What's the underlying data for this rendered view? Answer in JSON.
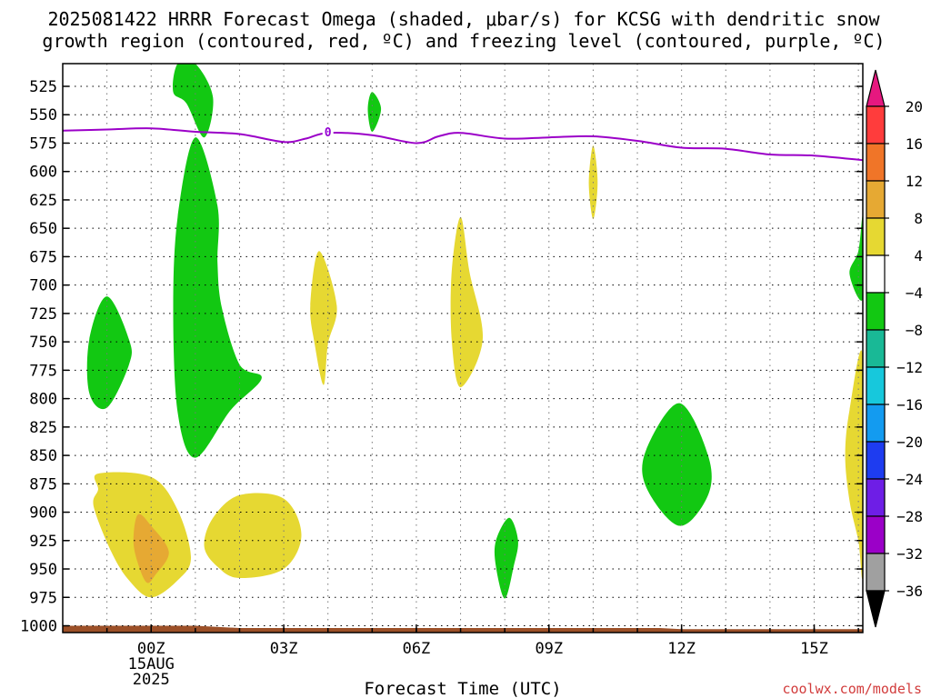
{
  "title_line1": "2025081422 HRRR Forecast Omega (shaded, μbar/s) for KCSG with dendritic snow",
  "title_line2": "growth region (contoured, red, ºC) and freezing level (contoured, purple, ºC)",
  "credit": "coolwx.com/models",
  "chart_data": {
    "type": "contour",
    "title": "2025081422 HRRR Forecast Omega (shaded, μbar/s) for KCSG with dendritic snow growth region (contoured, red, ºC) and freezing level (contoured, purple, ºC)",
    "xlabel": "Forecast Time (UTC)",
    "ylabel": "",
    "x_units": "hours after 2025-08-15 00Z",
    "xlim": [
      -2.0,
      16.1
    ],
    "ylim": [
      1006,
      505
    ],
    "grid": true,
    "x_ticks": [
      {
        "x": 0,
        "lines": [
          "00Z",
          "15AUG",
          "2025"
        ]
      },
      {
        "x": 3,
        "lines": [
          "03Z"
        ]
      },
      {
        "x": 6,
        "lines": [
          "06Z"
        ]
      },
      {
        "x": 9,
        "lines": [
          "09Z"
        ]
      },
      {
        "x": 12,
        "lines": [
          "12Z"
        ]
      },
      {
        "x": 15,
        "lines": [
          "15Z"
        ]
      }
    ],
    "y_ticks": [
      525,
      550,
      575,
      600,
      625,
      650,
      675,
      700,
      725,
      750,
      775,
      800,
      825,
      850,
      875,
      900,
      925,
      950,
      975,
      1000
    ],
    "freezing_level": {
      "label": "0",
      "color": "#9b00c8",
      "points": [
        [
          -2.0,
          564
        ],
        [
          -1.0,
          563
        ],
        [
          0.0,
          562
        ],
        [
          1.0,
          565
        ],
        [
          2.0,
          567
        ],
        [
          3.0,
          574
        ],
        [
          3.5,
          571
        ],
        [
          4.0,
          566
        ],
        [
          5.0,
          568
        ],
        [
          6.0,
          575
        ],
        [
          6.5,
          569
        ],
        [
          7.0,
          566
        ],
        [
          8.0,
          571
        ],
        [
          9.0,
          570
        ],
        [
          10.0,
          569
        ],
        [
          11.0,
          573
        ],
        [
          12.0,
          579
        ],
        [
          13.0,
          580
        ],
        [
          14.0,
          585
        ],
        [
          15.0,
          586
        ],
        [
          16.1,
          590
        ]
      ]
    },
    "omega_regions": [
      {
        "category": "-8 to -4",
        "color": "#12c812",
        "points": [
          [
            1.0,
            505
          ],
          [
            1.4,
            535
          ],
          [
            1.2,
            570
          ],
          [
            0.8,
            540
          ],
          [
            0.5,
            530
          ],
          [
            0.6,
            505
          ]
        ]
      },
      {
        "category": "-8 to -4",
        "color": "#12c812",
        "points": [
          [
            5.0,
            530
          ],
          [
            5.2,
            545
          ],
          [
            5.0,
            565
          ],
          [
            4.9,
            545
          ]
        ]
      },
      {
        "category": "-8 to -4",
        "color": "#12c812",
        "points": [
          [
            1.0,
            570
          ],
          [
            1.5,
            630
          ],
          [
            1.5,
            680
          ],
          [
            1.6,
            720
          ],
          [
            2.0,
            770
          ],
          [
            2.5,
            782
          ],
          [
            1.8,
            810
          ],
          [
            1.0,
            852
          ],
          [
            0.6,
            812
          ],
          [
            0.5,
            720
          ],
          [
            0.6,
            640
          ]
        ]
      },
      {
        "category": "-8 to -4",
        "color": "#12c812",
        "points": [
          [
            -1.0,
            710
          ],
          [
            -0.5,
            748
          ],
          [
            -0.5,
            770
          ],
          [
            -1.0,
            808
          ],
          [
            -1.4,
            795
          ],
          [
            -1.4,
            748
          ]
        ]
      },
      {
        "category": "-8 to -4",
        "color": "#12c812",
        "points": [
          [
            16.1,
            640
          ],
          [
            16.0,
            670
          ],
          [
            15.8,
            690
          ],
          [
            16.1,
            712
          ]
        ]
      },
      {
        "category": "-8 to -4",
        "color": "#12c812",
        "points": [
          [
            11.95,
            804
          ],
          [
            12.6,
            850
          ],
          [
            12.6,
            885
          ],
          [
            11.95,
            912
          ],
          [
            11.2,
            878
          ],
          [
            11.2,
            845
          ]
        ]
      },
      {
        "category": "-8 to -4",
        "color": "#12c812",
        "points": [
          [
            8.1,
            905
          ],
          [
            8.3,
            925
          ],
          [
            8.2,
            948
          ],
          [
            8.0,
            976
          ],
          [
            7.8,
            948
          ],
          [
            7.8,
            925
          ]
        ]
      },
      {
        "category": "4 to 8",
        "color": "#e6d832",
        "points": [
          [
            3.8,
            670
          ],
          [
            4.2,
            718
          ],
          [
            4.0,
            752
          ],
          [
            3.9,
            788
          ],
          [
            3.7,
            752
          ],
          [
            3.6,
            718
          ]
        ]
      },
      {
        "category": "4 to 8",
        "color": "#e6d832",
        "points": [
          [
            7.0,
            640
          ],
          [
            7.2,
            688
          ],
          [
            7.5,
            748
          ],
          [
            7.0,
            790
          ],
          [
            6.8,
            748
          ],
          [
            6.8,
            688
          ]
        ]
      },
      {
        "category": "4 to 8",
        "color": "#e6d832",
        "points": [
          [
            10.0,
            577
          ],
          [
            10.1,
            610
          ],
          [
            10.0,
            642
          ],
          [
            9.9,
            610
          ]
        ]
      },
      {
        "category": "4 to 8",
        "color": "#e6d832",
        "points": [
          [
            16.1,
            763
          ],
          [
            15.8,
            810
          ],
          [
            15.7,
            850
          ],
          [
            15.8,
            890
          ],
          [
            16.0,
            925
          ],
          [
            16.1,
            950
          ]
        ]
      },
      {
        "category": "4 to 8",
        "color": "#e6d832",
        "points": [
          [
            -1.2,
            866
          ],
          [
            0.0,
            869
          ],
          [
            0.6,
            898
          ],
          [
            0.9,
            940
          ],
          [
            0.6,
            960
          ],
          [
            0.0,
            975
          ],
          [
            -0.5,
            960
          ],
          [
            -0.9,
            935
          ],
          [
            -1.3,
            895
          ],
          [
            -1.2,
            880
          ]
        ]
      },
      {
        "category": "4 to 8",
        "color": "#e6d832",
        "points": [
          [
            2.0,
            885
          ],
          [
            3.0,
            888
          ],
          [
            3.4,
            920
          ],
          [
            3.0,
            950
          ],
          [
            2.0,
            958
          ],
          [
            1.5,
            948
          ],
          [
            1.2,
            930
          ],
          [
            1.4,
            905
          ]
        ]
      },
      {
        "category": "8 to 12",
        "color": "#e6a933",
        "points": [
          [
            -0.3,
            902
          ],
          [
            0.0,
            912
          ],
          [
            0.4,
            935
          ],
          [
            0.1,
            955
          ],
          [
            -0.1,
            962
          ],
          [
            -0.3,
            945
          ],
          [
            -0.4,
            925
          ]
        ]
      }
    ],
    "terrain": {
      "color": "#9c5028",
      "points": [
        [
          -2.0,
          1000
        ],
        [
          1.0,
          1000
        ],
        [
          2.0,
          1002
        ],
        [
          6.0,
          1002
        ],
        [
          11.5,
          1002
        ],
        [
          12.0,
          1003
        ],
        [
          16.1,
          1003
        ]
      ]
    },
    "colorbar": {
      "levels": [
        "20",
        "16",
        "12",
        "8",
        "4",
        "−4",
        "−8",
        "−12",
        "−16",
        "−20",
        "−24",
        "−28",
        "−32",
        "−36"
      ],
      "colors": [
        "#ff3c3c",
        "#f07528",
        "#e6a933",
        "#e6d832",
        "#ffffff",
        "#12c812",
        "#19b996",
        "#17c8dc",
        "#139bf0",
        "#1e3cf0",
        "#6e1ee6",
        "#9b00c8",
        "#a0a0a0"
      ],
      "top_arrow_color": "#e6187f",
      "bottom_arrow_color": "#000000"
    }
  }
}
